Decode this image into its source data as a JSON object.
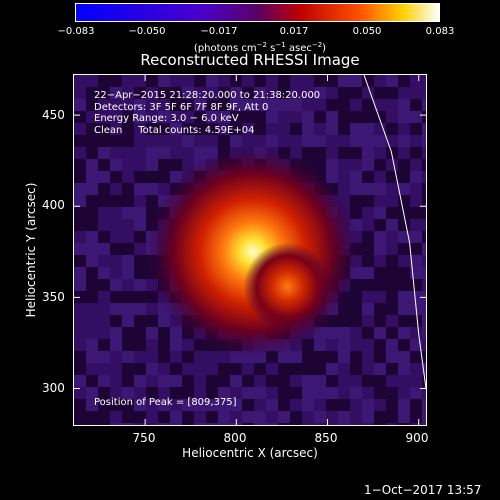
{
  "colorbar": {
    "labels": [
      "−0.083",
      "−0.050",
      "−0.017",
      "0.017",
      "0.050",
      "0.083"
    ],
    "unit": {
      "prefix": "(photons cm",
      "exp1": "−2",
      "mid1": " s",
      "exp2": "−1",
      "mid2": " asec",
      "exp3": "−2",
      "suffix": ")"
    },
    "range": [
      -0.083,
      0.083
    ]
  },
  "image": {
    "title": "Reconstructed RHESSI Image",
    "time_range": "22−Apr−2015 21:28:20.000 to 21:38:20.000",
    "detectors": "Detectors: 3F 5F 6F 7F 8F 9F, Att 0",
    "energy_range": "Energy Range: 3.0 − 6.0 keV",
    "clean_line": "Clean     Total counts: 4.59E+04",
    "peak_line": "Position of Peak = [809,375]"
  },
  "axes": {
    "x_label": "Heliocentric X (arcsec)",
    "y_label": "Heliocentric Y (arcsec)",
    "x_ticks": [
      "750",
      "800",
      "850",
      "900"
    ],
    "y_ticks": [
      "450",
      "400",
      "350",
      "300"
    ]
  },
  "footer": {
    "timestamp": "1−Oct−2017 13:57"
  },
  "chart_data": {
    "type": "heatmap",
    "title": "Reconstructed RHESSI Image",
    "xlabel": "Heliocentric X (arcsec)",
    "ylabel": "Heliocentric Y (arcsec)",
    "xlim": [
      711,
      904
    ],
    "ylim": [
      280,
      472
    ],
    "x_ticks": [
      750,
      800,
      850,
      900
    ],
    "y_ticks": [
      300,
      350,
      400,
      450
    ],
    "colorbar_range": [
      -0.083,
      0.083
    ],
    "colormap": "ROYGB-like (blue → purple → red → orange → yellow → white)",
    "sources": [
      {
        "x": 809,
        "y": 375,
        "relative_intensity": 1.0
      },
      {
        "x": 828,
        "y": 356,
        "relative_intensity": 0.55
      }
    ],
    "peak": [
      809,
      375
    ],
    "limb_curve": [
      [
        870,
        472
      ],
      [
        885,
        430
      ],
      [
        895,
        380
      ],
      [
        900,
        330
      ],
      [
        904,
        300
      ]
    ]
  }
}
